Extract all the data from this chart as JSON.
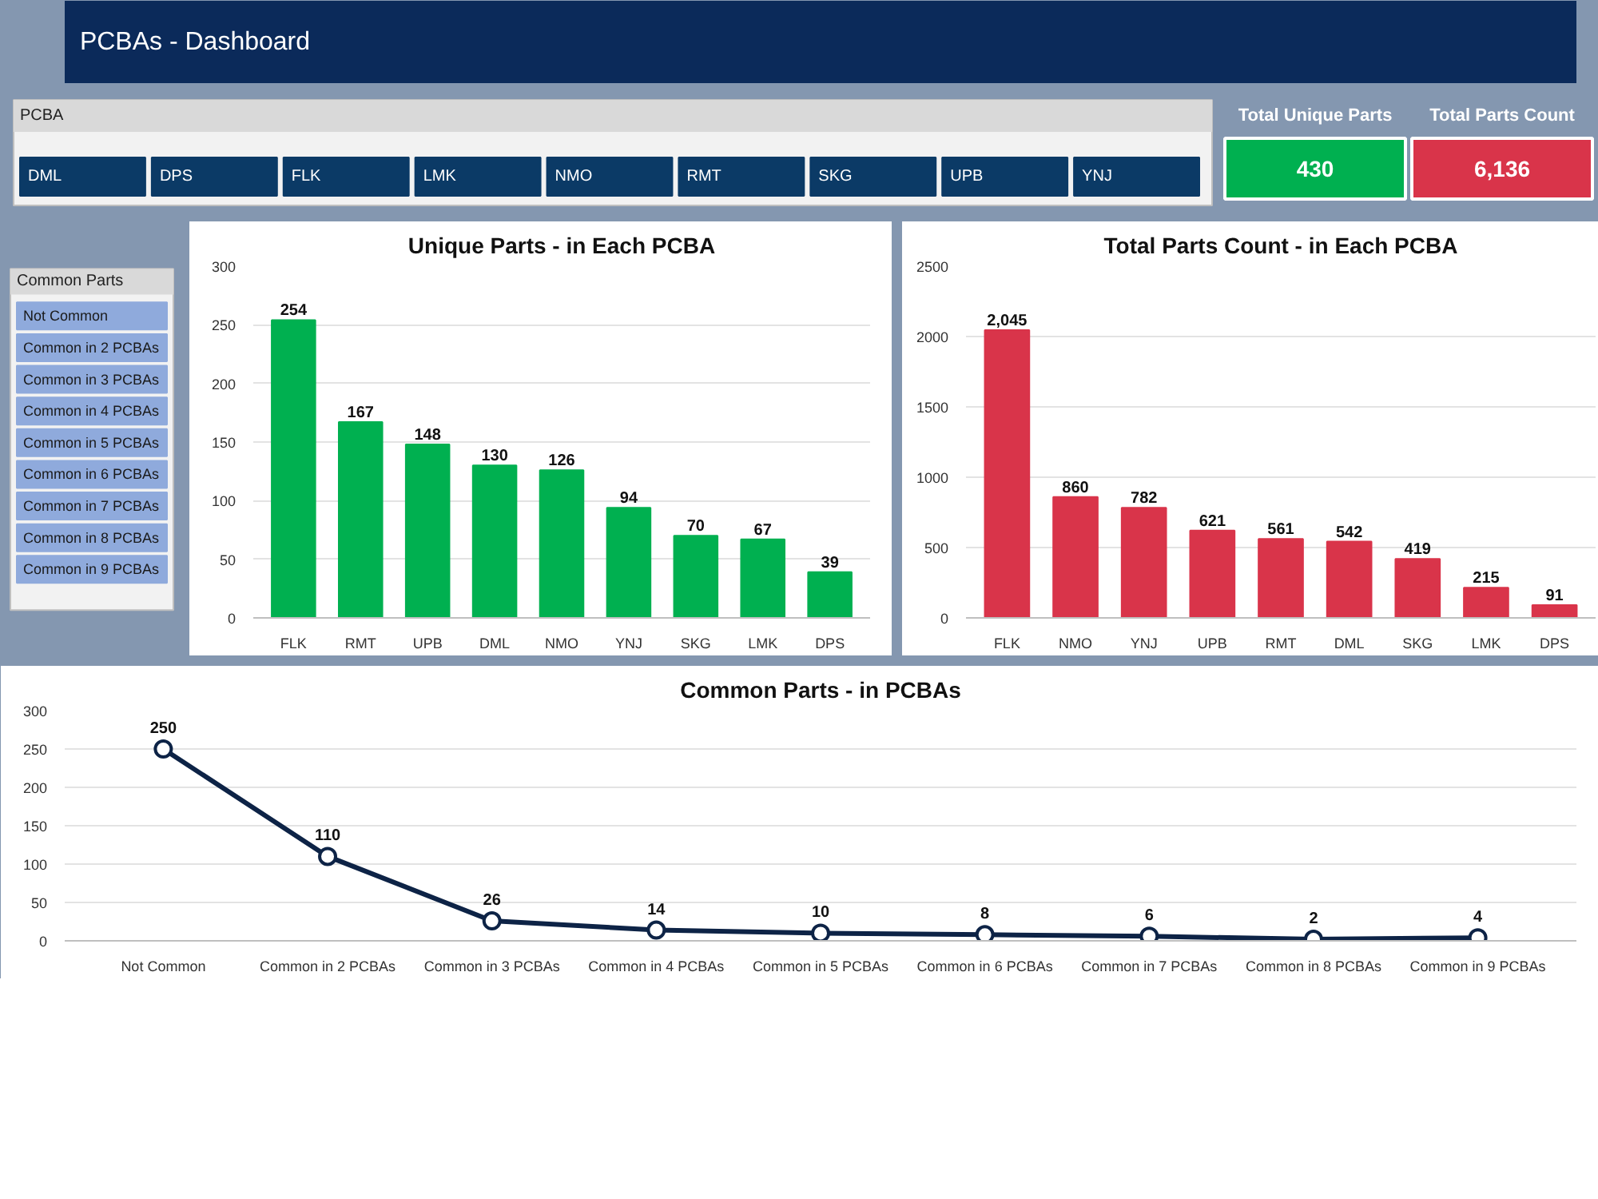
{
  "chart_data": [
    {
      "type": "other",
      "title": "PCBAs - Dashboard"
    },
    {
      "type": "other",
      "title": "PCBA",
      "annotations": [
        "DML",
        "DPS",
        "FLK",
        "LMK",
        "NMO",
        "RMT",
        "SKG",
        "UPB",
        "YNJ"
      ]
    },
    {
      "type": "other",
      "annotations": [
        "Total Unique Parts",
        "430",
        "Total Parts Count",
        "6,136"
      ]
    },
    {
      "type": "other",
      "title": "Common Parts",
      "annotations": [
        "Not Common",
        "Common in 2 PCBAs",
        "Common in 3 PCBAs",
        "Common in 4 PCBAs",
        "Common in 5 PCBAs",
        "Common in 6 PCBAs",
        "Common in 7 PCBAs",
        "Common in 8 PCBAs",
        "Common in 9 PCBAs"
      ]
    },
    {
      "type": "bar",
      "title": "Unique Parts - in Each PCBA",
      "categories": [
        "FLK",
        "RMT",
        "UPB",
        "DML",
        "NMO",
        "YNJ",
        "SKG",
        "LMK",
        "DPS"
      ],
      "values": [
        254,
        167,
        148,
        130,
        126,
        94,
        70,
        67,
        39
      ],
      "color": "#00b050",
      "ylim": [
        0,
        300
      ],
      "yticks": [
        0,
        50,
        100,
        150,
        200,
        250,
        300
      ],
      "grid": "y",
      "data_labels": true
    },
    {
      "type": "bar",
      "title": "Total Parts Count - in Each PCBA",
      "categories": [
        "FLK",
        "NMO",
        "YNJ",
        "UPB",
        "RMT",
        "DML",
        "SKG",
        "LMK",
        "DPS"
      ],
      "values": [
        2045,
        860,
        782,
        621,
        561,
        542,
        419,
        215,
        91
      ],
      "value_labels": [
        "2,045",
        "860",
        "782",
        "621",
        "561",
        "542",
        "419",
        "215",
        "91"
      ],
      "color": "#d9344a",
      "ylim": [
        0,
        2500
      ],
      "yticks": [
        0,
        500,
        1000,
        1500,
        2000,
        2500
      ],
      "grid": "y"
    },
    {
      "type": "line",
      "title": "Common Parts - in PCBAs",
      "categories": [
        "Not Common",
        "Common in 2 PCBAs",
        "Common in 3 PCBAs",
        "Common in 4 PCBAs",
        "Common in 5 PCBAs",
        "Common in 6 PCBAs",
        "Common in 7 PCBAs",
        "Common in 8 PCBAs",
        "Common in 9 PCBAs"
      ],
      "values": [
        250,
        110,
        26,
        14,
        10,
        8,
        6,
        2,
        4
      ],
      "color": "#0d2346",
      "marker": "circle",
      "ylim": [
        0,
        300
      ],
      "yticks": [
        0,
        50,
        100,
        150,
        200,
        250,
        300
      ],
      "grid": "y",
      "data_labels": true
    }
  ]
}
